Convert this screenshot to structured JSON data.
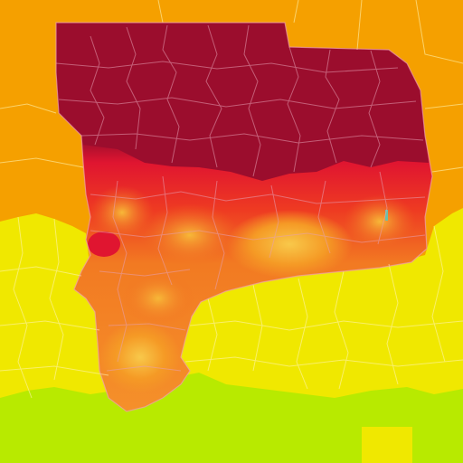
{
  "map": {
    "kind": "choropleth-heat-map",
    "labels_shown": false,
    "colors": {
      "background_region": "#f5a000",
      "outer_yellow_region": "#f0e800",
      "southern_green_region": "#b8ea00",
      "state_dark_red": "#9b0d2d",
      "state_red": "#e01530",
      "state_orange_red": "#f04a20",
      "state_orange": "#f58a1f",
      "state_light_orange": "#f5b030",
      "county_border": "#e6a0b4",
      "outer_border": "#fff4b0",
      "lake_marker": "#6cc0a8"
    },
    "legend": []
  }
}
